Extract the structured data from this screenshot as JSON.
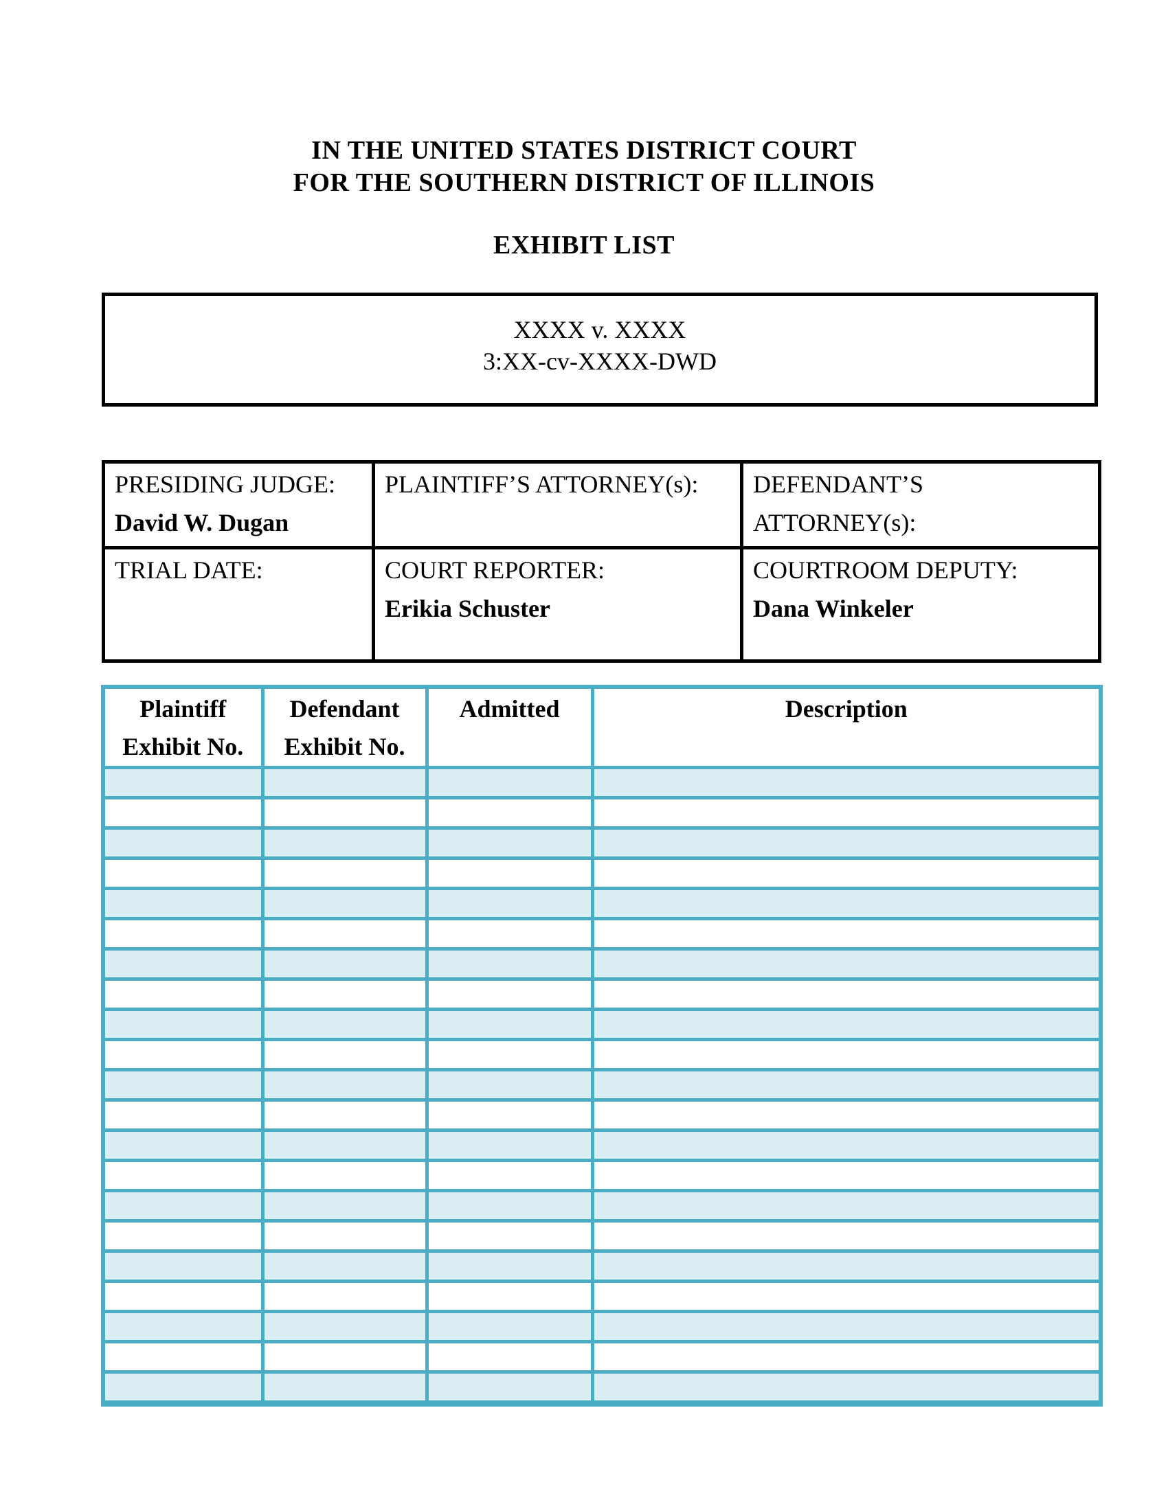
{
  "colors": {
    "table_border": "#4BACC6",
    "row_shade": "#DAEEF3",
    "ink": "#000000"
  },
  "header": {
    "court_line1": "IN THE UNITED STATES DISTRICT COURT",
    "court_line2": "FOR THE SOUTHERN DISTRICT OF ILLINOIS",
    "document_title": "EXHIBIT LIST"
  },
  "caption": {
    "case_name": "XXXX v. XXXX",
    "case_number": "3:XX-cv-XXXX-DWD"
  },
  "info_table": {
    "cells": [
      {
        "label": "PRESIDING JUDGE:",
        "value": "David W. Dugan"
      },
      {
        "label": "PLAINTIFF’S ATTORNEY(s):",
        "value": ""
      },
      {
        "label": "DEFENDANT’S ATTORNEY(s):",
        "value": ""
      },
      {
        "label": "TRIAL DATE:",
        "value": ""
      },
      {
        "label": "COURT REPORTER:",
        "value": "Erikia Schuster"
      },
      {
        "label": "COURTROOM DEPUTY:",
        "value": "Dana Winkeler"
      }
    ]
  },
  "exhibit_table": {
    "headers": [
      {
        "top": "Plaintiff",
        "bottom": "Exhibit No."
      },
      {
        "top": "Defendant",
        "bottom": "Exhibit No."
      },
      {
        "top": "Admitted",
        "bottom": ""
      },
      {
        "top": "Description",
        "bottom": ""
      }
    ],
    "row_count": 21,
    "rows_empty": true
  }
}
